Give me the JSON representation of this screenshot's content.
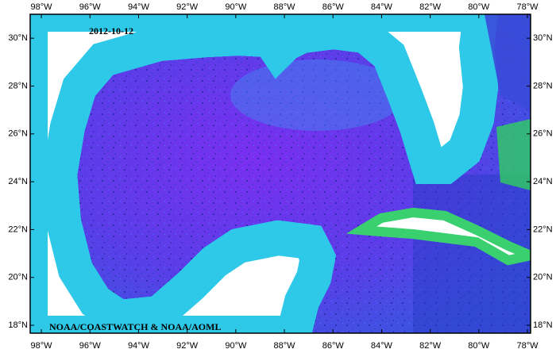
{
  "map": {
    "date": "2012-10-12",
    "credit": "NOAA/COASTWATCH & NOAA/AOML",
    "lonlim": [
      -98.46,
      -77.87
    ],
    "latlim": [
      17.67,
      31.0
    ],
    "lon_ticks": [
      {
        "value": -98,
        "label": "98°W"
      },
      {
        "value": -96,
        "label": "96°W"
      },
      {
        "value": -94,
        "label": "94°W"
      },
      {
        "value": -92,
        "label": "92°W"
      },
      {
        "value": -90,
        "label": "90°W"
      },
      {
        "value": -88,
        "label": "88°W"
      },
      {
        "value": -86,
        "label": "86°W"
      },
      {
        "value": -84,
        "label": "84°W"
      },
      {
        "value": -82,
        "label": "82°W"
      },
      {
        "value": -80,
        "label": "80°W"
      },
      {
        "value": -78,
        "label": "78°W"
      }
    ],
    "lat_ticks": [
      {
        "value": 18,
        "label": "18°N"
      },
      {
        "value": 20,
        "label": "20°N"
      },
      {
        "value": 22,
        "label": "22°N"
      },
      {
        "value": 24,
        "label": "24°N"
      },
      {
        "value": 26,
        "label": "26°N"
      },
      {
        "value": 28,
        "label": "28°N"
      },
      {
        "value": 30,
        "label": "30°N"
      }
    ]
  }
}
